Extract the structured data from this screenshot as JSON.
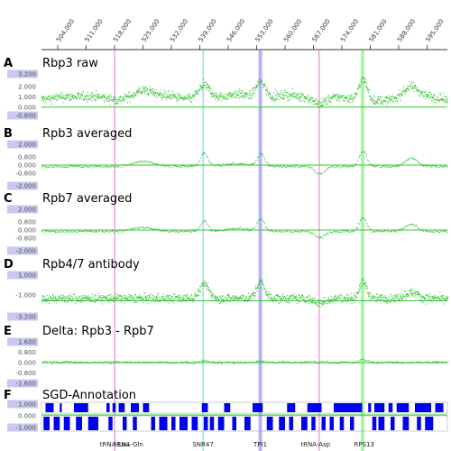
{
  "chart_data": {
    "type": "scatter",
    "x_axis": {
      "ticks": [
        "504,000",
        "511,000",
        "518,000",
        "525,000",
        "532,000",
        "539,000",
        "546,000",
        "553,000",
        "560,000",
        "567,000",
        "574,000",
        "581,000",
        "588,000",
        "595,000"
      ],
      "range": [
        500000,
        600000
      ]
    },
    "colors": {
      "data": "#22bb22",
      "baseline": "#33cc33",
      "tick_box": "#c8c8f0",
      "gene_fill": "#0000ee"
    },
    "highlights": [
      {
        "x": 518000,
        "color": "#ee66cc",
        "width": 1
      },
      {
        "x": 539800,
        "color": "#44dddd",
        "width": 1
      },
      {
        "x": 553900,
        "color": "#7777ee",
        "width": 4
      },
      {
        "x": 568400,
        "color": "#ee66cc",
        "width": 1
      },
      {
        "x": 579100,
        "color": "#66ee66",
        "width": 4
      }
    ],
    "panels": [
      {
        "letter": "A",
        "title": "Rbp3 raw",
        "yticks": [
          "3.200",
          "2.000",
          "1.000",
          "0.000",
          "-0.800"
        ],
        "ylim": [
          -0.8,
          3.2
        ],
        "baseline": 0,
        "noise": 0.45,
        "dots_per_bin": 3,
        "base_level": 0.7,
        "peaks": [
          [
            506000,
            0.3,
            4000
          ],
          [
            513000,
            0.3,
            3000
          ],
          [
            525000,
            0.9,
            2500
          ],
          [
            531000,
            0.4,
            3000
          ],
          [
            540000,
            1.4,
            1500
          ],
          [
            548000,
            0.6,
            3000
          ],
          [
            553900,
            1.6,
            1200
          ],
          [
            561000,
            0.5,
            4000
          ],
          [
            568400,
            -0.5,
            1500
          ],
          [
            573000,
            0.3,
            3000
          ],
          [
            579100,
            2.0,
            1000
          ],
          [
            591000,
            1.3,
            2000
          ],
          [
            596000,
            0.3,
            2000
          ]
        ]
      },
      {
        "letter": "B",
        "title": "Rpb3 averaged",
        "yticks": [
          "2.000",
          "0.800",
          "0.000",
          "-0.800",
          "-2.000"
        ],
        "ylim": [
          -2.0,
          2.0
        ],
        "baseline": 0,
        "noise": 0.12,
        "dots_per_bin": 1,
        "base_level": -0.1,
        "peaks": [
          [
            525000,
            0.5,
            2500
          ],
          [
            540000,
            1.3,
            900
          ],
          [
            548000,
            0.3,
            3000
          ],
          [
            553900,
            1.2,
            900
          ],
          [
            568400,
            -0.7,
            1200
          ],
          [
            579100,
            1.5,
            900
          ],
          [
            591000,
            0.8,
            1500
          ]
        ]
      },
      {
        "letter": "C",
        "title": "Rpb7 averaged",
        "yticks": [
          "2.000",
          "0.800",
          "0.000",
          "-0.800",
          "-2.000"
        ],
        "ylim": [
          -2.0,
          2.0
        ],
        "baseline": 0,
        "noise": 0.12,
        "dots_per_bin": 1,
        "base_level": -0.1,
        "peaks": [
          [
            525000,
            0.4,
            2500
          ],
          [
            540000,
            1.0,
            900
          ],
          [
            548000,
            0.3,
            3000
          ],
          [
            553900,
            1.2,
            900
          ],
          [
            568400,
            -0.6,
            1200
          ],
          [
            579100,
            1.3,
            900
          ],
          [
            591000,
            0.7,
            1500
          ]
        ]
      },
      {
        "letter": "D",
        "title": "Rpb4/7 antibody",
        "yticks": [
          "1.000",
          "-1.000",
          "-3.200"
        ],
        "ylim": [
          -3.2,
          1.0
        ],
        "baseline": -1.6,
        "noise": 0.45,
        "dots_per_bin": 3,
        "base_level": -1.3,
        "peaks": [
          [
            540000,
            1.4,
            1200
          ],
          [
            553900,
            1.6,
            1000
          ],
          [
            568400,
            -0.5,
            1500
          ],
          [
            579100,
            1.6,
            900
          ],
          [
            591000,
            0.6,
            1500
          ]
        ]
      },
      {
        "letter": "E",
        "title": "Delta: Rpb3 - Rpb7",
        "yticks": [
          "1.600",
          "0.800",
          "0.000",
          "-0.800",
          "-1.600"
        ],
        "ylim": [
          -1.6,
          1.6
        ],
        "baseline": 0,
        "noise": 0.1,
        "dots_per_bin": 1,
        "base_level": 0.05,
        "peaks": [
          [
            540000,
            0.15,
            1000
          ],
          [
            553900,
            0.1,
            1000
          ],
          [
            579100,
            0.2,
            900
          ]
        ]
      }
    ],
    "annotation": {
      "letter": "F",
      "title": "SGD-Annotation",
      "yticks": [
        "1.000",
        "0.000",
        "-1.000"
      ],
      "genes_top": [
        [
          501000,
          503000
        ],
        [
          504500,
          505000
        ],
        [
          508000,
          511500
        ],
        [
          516000,
          516800
        ],
        [
          517500,
          518300
        ],
        [
          519000,
          520500
        ],
        [
          522000,
          524000
        ],
        [
          525000,
          526500
        ],
        [
          539500,
          541000
        ],
        [
          545000,
          546500
        ],
        [
          552000,
          554500
        ],
        [
          560500,
          562500
        ],
        [
          565500,
          569000
        ],
        [
          572000,
          579000
        ],
        [
          580500,
          581200
        ],
        [
          582000,
          584500
        ],
        [
          585500,
          586500
        ],
        [
          587500,
          590500
        ],
        [
          592000,
          596000
        ],
        [
          597000,
          599000
        ]
      ],
      "genes_bottom": [
        [
          500500,
          502000
        ],
        [
          503000,
          504500
        ],
        [
          505500,
          507000
        ],
        [
          508500,
          510000
        ],
        [
          511500,
          514000
        ],
        [
          516500,
          517500
        ],
        [
          520000,
          521000
        ],
        [
          522500,
          523500
        ],
        [
          527000,
          528000
        ],
        [
          529000,
          531000
        ],
        [
          532000,
          533000
        ],
        [
          534000,
          536000
        ],
        [
          537000,
          538500
        ],
        [
          540000,
          541000
        ],
        [
          541500,
          542500
        ],
        [
          543500,
          545000
        ],
        [
          547000,
          548000
        ],
        [
          550000,
          551500
        ],
        [
          555500,
          557000
        ],
        [
          558500,
          560000
        ],
        [
          561000,
          562000
        ],
        [
          564000,
          565500
        ],
        [
          566500,
          567500
        ],
        [
          569000,
          570000
        ],
        [
          571000,
          572000
        ],
        [
          573500,
          574500
        ],
        [
          576000,
          577000
        ],
        [
          581500,
          582500
        ],
        [
          583000,
          584500
        ],
        [
          586000,
          587000
        ],
        [
          589000,
          590500
        ],
        [
          592500,
          593500
        ],
        [
          594500,
          596500
        ]
      ],
      "labels": [
        {
          "text": "tRNA-Leu",
          "x": 518000
        },
        {
          "text": "tRNA-Gln",
          "x": 521500
        },
        {
          "text": "SNR47",
          "x": 539800
        },
        {
          "text": "TPI1",
          "x": 553900
        },
        {
          "text": "tRNA-Asp",
          "x": 567500
        },
        {
          "text": "RPS13",
          "x": 579500
        }
      ]
    }
  }
}
